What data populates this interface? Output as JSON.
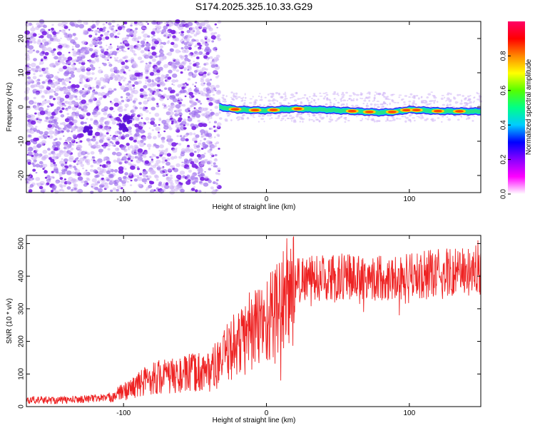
{
  "title": "S174.2025.325.10.33.G29",
  "chart_data": [
    {
      "type": "heatmap",
      "title": "S174.2025.325.10.33.G29",
      "xlabel": "Height of straight line (km)",
      "ylabel": "Frequency (Hz)",
      "xlim": [
        -168,
        150
      ],
      "ylim": [
        -25,
        25
      ],
      "xticks": [
        -100,
        0,
        100
      ],
      "xtick_labels": [
        "-100",
        "0",
        "100"
      ],
      "yticks": [
        -20,
        -10,
        0,
        10,
        20
      ],
      "ytick_labels": [
        "-20",
        "-10",
        "0",
        "10",
        "20"
      ],
      "colorbar": {
        "label": "Normalized spectral amplitude",
        "range": [
          0,
          1
        ],
        "ticks": [
          0.0,
          0.2,
          0.4,
          0.6,
          0.8
        ],
        "tick_labels": [
          "0.0",
          "0.2",
          "0.4",
          "0.6",
          "0.8"
        ],
        "colors": [
          "#ffffff",
          "#ff00ff",
          "#8800ff",
          "#0000ff",
          "#00ccff",
          "#00ff88",
          "#55ff00",
          "#ffff00",
          "#ff8800",
          "#ff0000",
          "#ff0066"
        ]
      },
      "noise_region_km": [
        -168,
        -33
      ],
      "signal_band": {
        "x_start_km": -33,
        "x_end_km": 150,
        "freq_center_hz": [
          [
            -33,
            0.0
          ],
          [
            -20,
            -0.8
          ],
          [
            0,
            -1.0
          ],
          [
            20,
            -0.5
          ],
          [
            40,
            -0.8
          ],
          [
            60,
            -1.2
          ],
          [
            80,
            -1.6
          ],
          [
            90,
            -1.4
          ],
          [
            100,
            -0.8
          ],
          [
            120,
            -1.2
          ],
          [
            150,
            -1.3
          ]
        ],
        "peak_amplitude_points_km": [
          -22,
          -8,
          5,
          22,
          60,
          72,
          88,
          98,
          105,
          120,
          135
        ]
      }
    },
    {
      "type": "line",
      "xlabel": "Height of straight line (km)",
      "ylabel": "SNR (10 * v/v)",
      "xlim": [
        -168,
        150
      ],
      "ylim": [
        0,
        525
      ],
      "xticks": [
        -100,
        0,
        100
      ],
      "xtick_labels": [
        "-100",
        "0",
        "100"
      ],
      "yticks": [
        0,
        100,
        200,
        300,
        400,
        500
      ],
      "ytick_labels": [
        "0",
        "100",
        "200",
        "300",
        "400",
        "500"
      ],
      "color": "#ee2222",
      "envelope": [
        [
          -168,
          20
        ],
        [
          -140,
          20
        ],
        [
          -110,
          28
        ],
        [
          -95,
          55
        ],
        [
          -80,
          90
        ],
        [
          -60,
          95
        ],
        [
          -50,
          105
        ],
        [
          -40,
          110
        ],
        [
          -33,
          130
        ],
        [
          -25,
          180
        ],
        [
          -15,
          210
        ],
        [
          -5,
          250
        ],
        [
          5,
          280
        ],
        [
          10,
          320
        ],
        [
          15,
          340
        ],
        [
          20,
          380
        ],
        [
          25,
          395
        ],
        [
          40,
          395
        ],
        [
          60,
          400
        ],
        [
          80,
          395
        ],
        [
          100,
          400
        ],
        [
          120,
          410
        ],
        [
          150,
          420
        ]
      ],
      "spikes": [
        [
          -53,
          150
        ],
        [
          -25,
          210
        ],
        [
          -12,
          350
        ],
        [
          10,
          520
        ],
        [
          13,
          390
        ],
        [
          15,
          450
        ],
        [
          148,
          510
        ]
      ],
      "dips": [
        [
          10,
          80
        ],
        [
          68,
          290
        ],
        [
          93,
          280
        ],
        [
          130,
          340
        ]
      ]
    }
  ]
}
